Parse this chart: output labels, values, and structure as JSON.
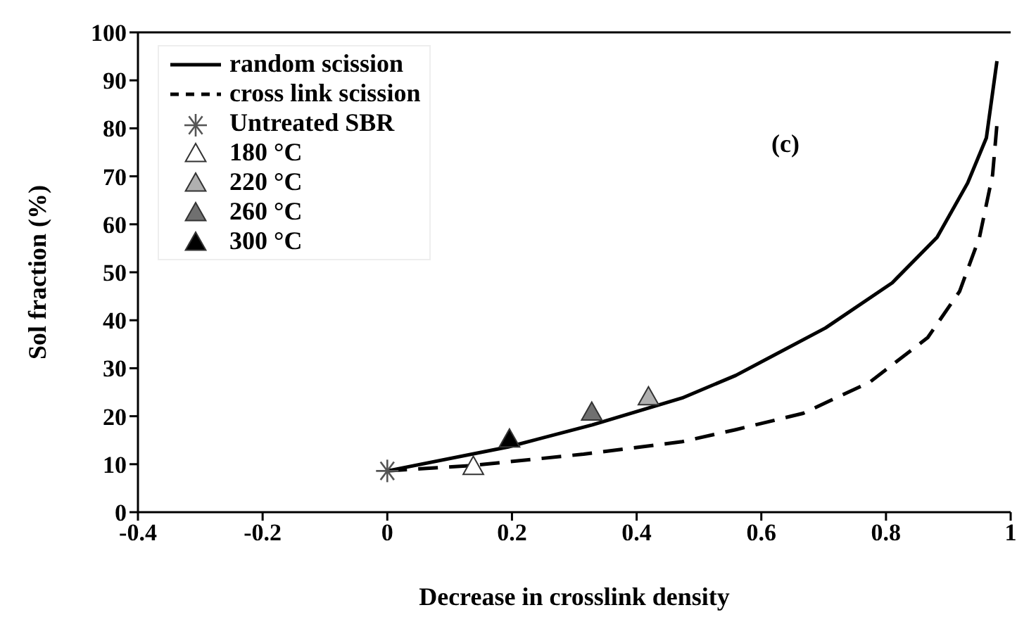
{
  "chart_data": {
    "type": "scatter",
    "xlabel": "Decrease in crosslink density",
    "ylabel": "Sol fraction (%)",
    "xlim": [
      -0.4,
      1
    ],
    "xticks": [
      -0.4,
      -0.2,
      0,
      0.2,
      0.4,
      0.6,
      0.8,
      1
    ],
    "ylim": [
      0,
      100
    ],
    "yticks": [
      0,
      10,
      20,
      30,
      40,
      50,
      60,
      70,
      80,
      90,
      100
    ],
    "grid": false,
    "legend": "top left",
    "annotations": [
      "(c)"
    ],
    "series": [
      {
        "name": "random scission",
        "type": "line",
        "line_style": "solid",
        "marker": "none",
        "color": "#000000",
        "x": [
          0,
          0.194,
          0.329,
          0.473,
          0.559,
          0.703,
          0.81,
          0.882,
          0.931,
          0.961,
          0.978
        ],
        "values": [
          8.6,
          13.6,
          18.2,
          23.8,
          28.5,
          38.4,
          47.8,
          57.3,
          68.6,
          78,
          94
        ]
      },
      {
        "name": "cross link scission",
        "type": "line",
        "line_style": "dashed",
        "marker": "none",
        "color": "#000000",
        "x": [
          0,
          0.135,
          0.315,
          0.473,
          0.559,
          0.667,
          0.774,
          0.867,
          0.918,
          0.95,
          0.971,
          0.978
        ],
        "values": [
          8.6,
          9.7,
          12.1,
          14.7,
          17.2,
          20.6,
          27.1,
          36.4,
          46,
          57.3,
          70.3,
          80.8
        ]
      },
      {
        "name": "Untreated SBR",
        "marker": "cross",
        "color": "#555555",
        "x": [
          0
        ],
        "values": [
          8.6
        ]
      },
      {
        "name": "180 °C",
        "marker": "triangle",
        "color": "#ffffff",
        "x": [
          0.138
        ],
        "values": [
          9.3
        ]
      },
      {
        "name": "220 °C",
        "marker": "triangle",
        "color": "#b0b0b0",
        "x": [
          0.419
        ],
        "values": [
          23.8
        ]
      },
      {
        "name": "260 °C",
        "marker": "triangle",
        "color": "#707070",
        "x": [
          0.328
        ],
        "values": [
          20.6
        ]
      },
      {
        "name": "300 °C",
        "marker": "triangle",
        "color": "#000000",
        "x": [
          0.196
        ],
        "values": [
          15
        ]
      }
    ]
  }
}
